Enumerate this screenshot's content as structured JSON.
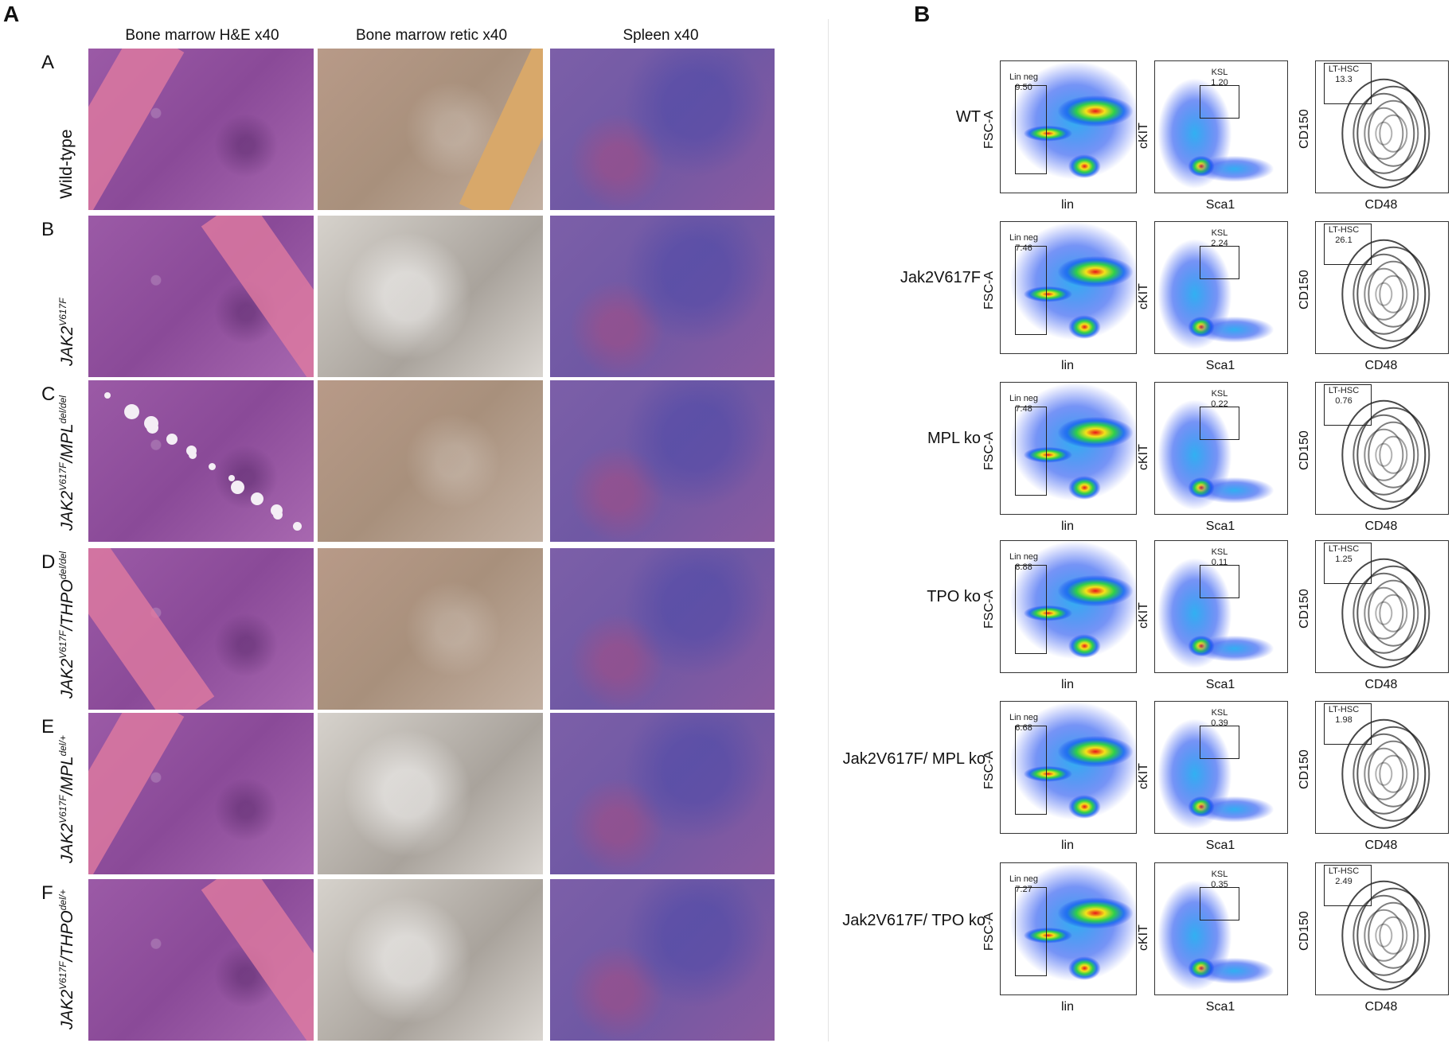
{
  "panelA": {
    "letter": "A",
    "columns": [
      "Bone marrow H&E x40",
      "Bone marrow retic x40",
      "Spleen x40"
    ],
    "rows": [
      {
        "letter": "A",
        "label_main": "Wild-type",
        "label_sup": "",
        "label_tail": ""
      },
      {
        "letter": "B",
        "label_main": "JAK2",
        "label_sup": "V617F",
        "label_tail": ""
      },
      {
        "letter": "C",
        "label_main": "JAK2",
        "label_sup": "V617F",
        "label_tail": "/MPL",
        "label_sup2": "del/del"
      },
      {
        "letter": "D",
        "label_main": "JAK2",
        "label_sup": "V617F",
        "label_tail": "/THPO",
        "label_sup2": "del/del"
      },
      {
        "letter": "E",
        "label_main": "JAK2",
        "label_sup": "V617F",
        "label_tail": "/MPL",
        "label_sup2": "del/+"
      },
      {
        "letter": "F",
        "label_main": "JAK2",
        "label_sup": "V617F",
        "label_tail": "/THPO",
        "label_sup2": "del/+"
      }
    ],
    "stain_colors": {
      "he": "#9b5aa6",
      "retic": "#b89a88",
      "spleen": "#7c5fa8",
      "bone_he": "#e07aa0",
      "bone_retic": "#d8a86a"
    }
  },
  "panelB": {
    "letter": "B",
    "axis": {
      "plot1_y": "FSC-A",
      "plot1_x": "lin",
      "plot2_y": "cKIT",
      "plot2_x": "Sca1",
      "plot3_y": "CD150",
      "plot3_x": "CD48"
    },
    "gates": {
      "g1": "Lin neg",
      "g2": "KSL",
      "g3": "LT-HSC"
    },
    "rows": [
      {
        "condition": "WT",
        "lin_neg": "9.50",
        "ksl": "1.20",
        "lt_hsc": "13.3"
      },
      {
        "condition": "Jak2V617F",
        "lin_neg": "7.46",
        "ksl": "2.24",
        "lt_hsc": "26.1"
      },
      {
        "condition": "MPL ko",
        "lin_neg": "7.48",
        "ksl": "0.22",
        "lt_hsc": "0.76"
      },
      {
        "condition": "TPO ko",
        "lin_neg": "8.88",
        "ksl": "0.11",
        "lt_hsc": "1.25"
      },
      {
        "condition": "Jak2V617F/ MPL ko",
        "lin_neg": "6.68",
        "ksl": "0.39",
        "lt_hsc": "1.98"
      },
      {
        "condition": "Jak2V617F/ TPO ko",
        "lin_neg": "7.27",
        "ksl": "0.35",
        "lt_hsc": "2.49"
      }
    ]
  }
}
